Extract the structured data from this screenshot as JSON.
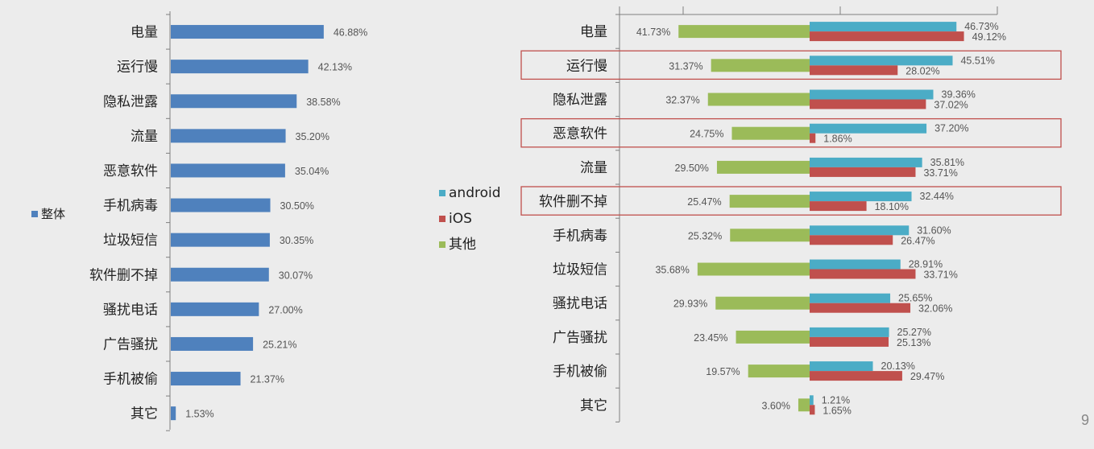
{
  "page_number": "9",
  "colors": {
    "overall": "#4f81bd",
    "android": "#4bacc6",
    "ios": "#c0504d",
    "other": "#9bbb59",
    "highlight": "#c0504d",
    "axis": "#7f7f7f"
  },
  "chart_data": [
    {
      "type": "bar",
      "orientation": "horizontal",
      "legend_position": "left",
      "categories": [
        "电量",
        "运行慢",
        "隐私泄露",
        "流量",
        "恶意软件",
        "手机病毒",
        "垃圾短信",
        "软件删不掉",
        "骚扰电话",
        "广告骚扰",
        "手机被偷",
        "其它"
      ],
      "series": [
        {
          "name": "整体",
          "values": [
            46.88,
            42.13,
            38.58,
            35.2,
            35.04,
            30.5,
            30.35,
            30.07,
            27.0,
            25.21,
            21.37,
            1.53
          ],
          "labels": [
            "46.88%",
            "42.13%",
            "38.58%",
            "35.20%",
            "35.04%",
            "30.50%",
            "30.35%",
            "30.07%",
            "27.00%",
            "25.21%",
            "21.37%",
            "1.53%"
          ]
        }
      ],
      "xlim": [
        0,
        100
      ]
    },
    {
      "type": "bar",
      "orientation": "horizontal",
      "legend_position": "left",
      "categories": [
        "电量",
        "运行慢",
        "隐私泄露",
        "恶意软件",
        "流量",
        "软件删不掉",
        "手机病毒",
        "垃圾短信",
        "骚扰电话",
        "广告骚扰",
        "手机被偷",
        "其它"
      ],
      "highlighted_categories": [
        "运行慢",
        "恶意软件",
        "软件删不掉"
      ],
      "series": [
        {
          "name": "android",
          "values": [
            46.73,
            45.51,
            39.36,
            37.2,
            35.81,
            32.44,
            31.6,
            28.91,
            25.65,
            25.27,
            20.13,
            1.21
          ],
          "labels": [
            "46.73%",
            "45.51%",
            "39.36%",
            "37.20%",
            "35.81%",
            "32.44%",
            "31.60%",
            "28.91%",
            "25.65%",
            "25.27%",
            "20.13%",
            "1.21%"
          ]
        },
        {
          "name": "iOS",
          "values": [
            49.12,
            28.02,
            37.02,
            1.86,
            33.71,
            18.1,
            26.47,
            33.71,
            32.06,
            25.13,
            29.47,
            1.65
          ],
          "labels": [
            "49.12%",
            "28.02%",
            "37.02%",
            "1.86%",
            "33.71%",
            "18.10%",
            "26.47%",
            "33.71%",
            "32.06%",
            "25.13%",
            "29.47%",
            "1.65%"
          ]
        },
        {
          "name": "其他",
          "values": [
            41.73,
            31.37,
            32.37,
            24.75,
            29.5,
            25.47,
            25.32,
            35.68,
            29.93,
            23.45,
            19.57,
            3.6
          ],
          "labels": [
            "41.73%",
            "31.37%",
            "32.37%",
            "24.75%",
            "29.50%",
            "25.47%",
            "25.32%",
            "35.68%",
            "29.93%",
            "23.45%",
            "19.57%",
            "3.60%"
          ]
        }
      ],
      "xlim": [
        -60,
        60
      ]
    }
  ]
}
